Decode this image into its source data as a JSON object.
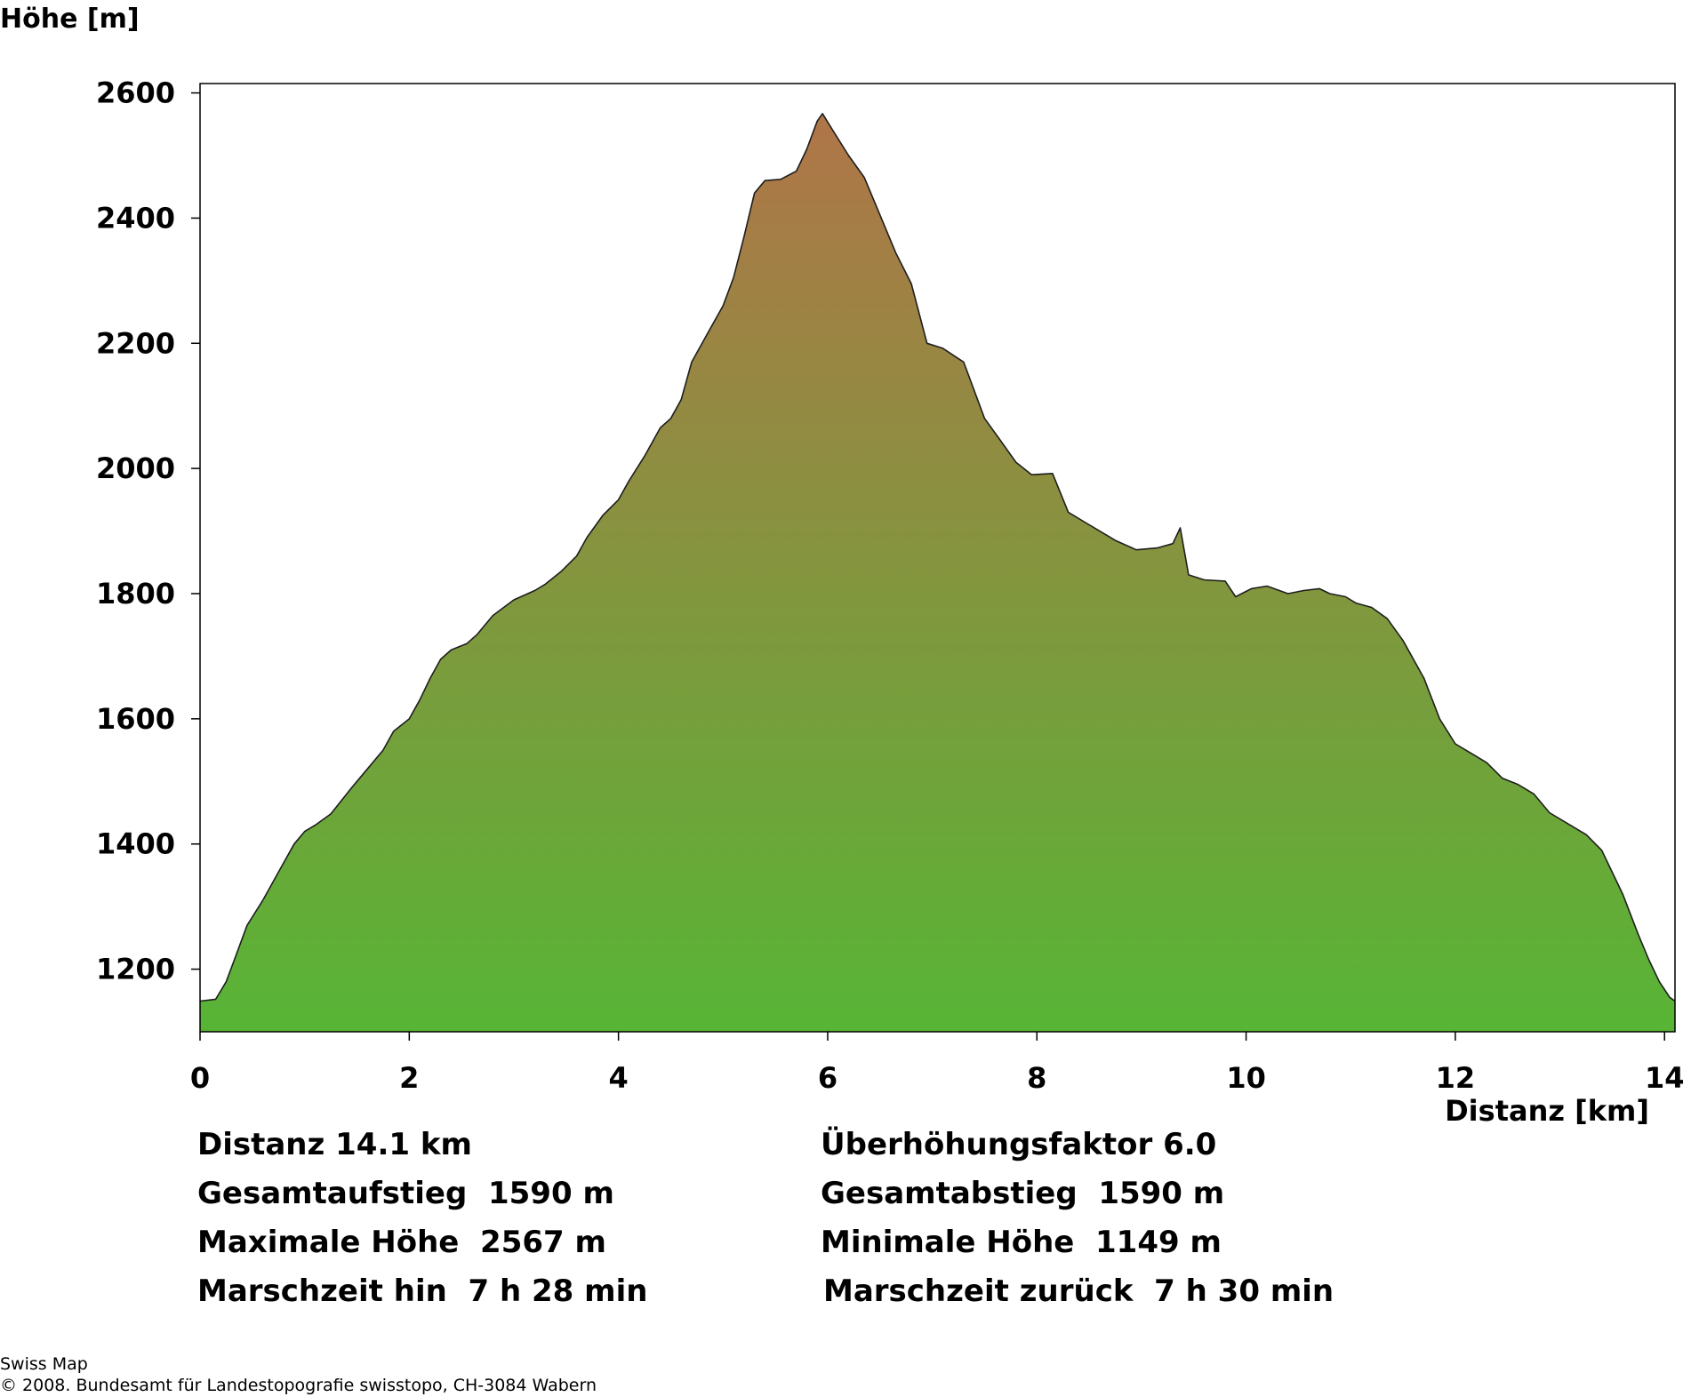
{
  "chart_data": {
    "type": "area",
    "ylabel": "Höhe [m]",
    "xlabel": "Distanz [km]",
    "xlim": [
      0,
      14.1
    ],
    "ylim": [
      1100,
      2615
    ],
    "x_ticks": [
      "0",
      "2",
      "4",
      "6",
      "8",
      "10",
      "12",
      "14"
    ],
    "y_ticks": [
      "1200",
      "1400",
      "1600",
      "1800",
      "2000",
      "2200",
      "2400",
      "2600"
    ],
    "gradient": {
      "bottom": "#57b535",
      "top": "#b07548"
    },
    "grid": false,
    "points": [
      [
        0.0,
        1149
      ],
      [
        0.15,
        1152
      ],
      [
        0.25,
        1180
      ],
      [
        0.35,
        1225
      ],
      [
        0.45,
        1270
      ],
      [
        0.6,
        1310
      ],
      [
        0.75,
        1355
      ],
      [
        0.9,
        1400
      ],
      [
        1.0,
        1420
      ],
      [
        1.1,
        1430
      ],
      [
        1.25,
        1448
      ],
      [
        1.45,
        1490
      ],
      [
        1.6,
        1520
      ],
      [
        1.75,
        1550
      ],
      [
        1.85,
        1580
      ],
      [
        2.0,
        1600
      ],
      [
        2.1,
        1630
      ],
      [
        2.2,
        1665
      ],
      [
        2.3,
        1695
      ],
      [
        2.4,
        1710
      ],
      [
        2.55,
        1720
      ],
      [
        2.65,
        1735
      ],
      [
        2.8,
        1765
      ],
      [
        3.0,
        1790
      ],
      [
        3.2,
        1805
      ],
      [
        3.3,
        1815
      ],
      [
        3.45,
        1835
      ],
      [
        3.6,
        1860
      ],
      [
        3.7,
        1890
      ],
      [
        3.85,
        1925
      ],
      [
        4.0,
        1950
      ],
      [
        4.1,
        1980
      ],
      [
        4.25,
        2020
      ],
      [
        4.4,
        2065
      ],
      [
        4.5,
        2080
      ],
      [
        4.6,
        2110
      ],
      [
        4.7,
        2170
      ],
      [
        4.85,
        2215
      ],
      [
        5.0,
        2260
      ],
      [
        5.1,
        2305
      ],
      [
        5.2,
        2370
      ],
      [
        5.3,
        2440
      ],
      [
        5.4,
        2460
      ],
      [
        5.55,
        2462
      ],
      [
        5.7,
        2475
      ],
      [
        5.8,
        2510
      ],
      [
        5.9,
        2555
      ],
      [
        5.95,
        2567
      ],
      [
        6.05,
        2540
      ],
      [
        6.2,
        2500
      ],
      [
        6.35,
        2465
      ],
      [
        6.5,
        2405
      ],
      [
        6.65,
        2345
      ],
      [
        6.8,
        2295
      ],
      [
        6.95,
        2200
      ],
      [
        7.1,
        2192
      ],
      [
        7.3,
        2170
      ],
      [
        7.5,
        2080
      ],
      [
        7.65,
        2045
      ],
      [
        7.8,
        2010
      ],
      [
        7.95,
        1990
      ],
      [
        8.15,
        1992
      ],
      [
        8.3,
        1930
      ],
      [
        8.45,
        1915
      ],
      [
        8.6,
        1900
      ],
      [
        8.75,
        1885
      ],
      [
        8.95,
        1870
      ],
      [
        9.15,
        1873
      ],
      [
        9.3,
        1880
      ],
      [
        9.37,
        1905
      ],
      [
        9.45,
        1830
      ],
      [
        9.6,
        1822
      ],
      [
        9.8,
        1820
      ],
      [
        9.9,
        1795
      ],
      [
        10.05,
        1808
      ],
      [
        10.2,
        1812
      ],
      [
        10.4,
        1800
      ],
      [
        10.55,
        1805
      ],
      [
        10.7,
        1808
      ],
      [
        10.8,
        1800
      ],
      [
        10.95,
        1795
      ],
      [
        11.05,
        1785
      ],
      [
        11.2,
        1778
      ],
      [
        11.35,
        1760
      ],
      [
        11.5,
        1725
      ],
      [
        11.7,
        1665
      ],
      [
        11.85,
        1600
      ],
      [
        12.0,
        1560
      ],
      [
        12.15,
        1545
      ],
      [
        12.3,
        1530
      ],
      [
        12.45,
        1505
      ],
      [
        12.6,
        1495
      ],
      [
        12.75,
        1480
      ],
      [
        12.9,
        1450
      ],
      [
        13.1,
        1430
      ],
      [
        13.25,
        1415
      ],
      [
        13.4,
        1390
      ],
      [
        13.6,
        1320
      ],
      [
        13.75,
        1255
      ],
      [
        13.85,
        1215
      ],
      [
        13.95,
        1180
      ],
      [
        14.05,
        1155
      ],
      [
        14.1,
        1149
      ]
    ]
  },
  "stats": {
    "distance": "Distanz 14.1 km",
    "exaggeration": "Überhöhungsfaktor 6.0",
    "ascent": "Gesamtaufstieg  1590 m",
    "descent": "Gesamtabstieg  1590 m",
    "max_height": "Maximale Höhe  2567 m",
    "min_height": "Minimale Höhe  1149 m",
    "time_out": "Marschzeit hin  7 h 28 min",
    "time_back": "Marschzeit zurück  7 h 30 min"
  },
  "credits": {
    "line1": "Swiss Map",
    "line2": "© 2008. Bundesamt für Landestopografie swisstopo, CH-3084 Wabern"
  }
}
